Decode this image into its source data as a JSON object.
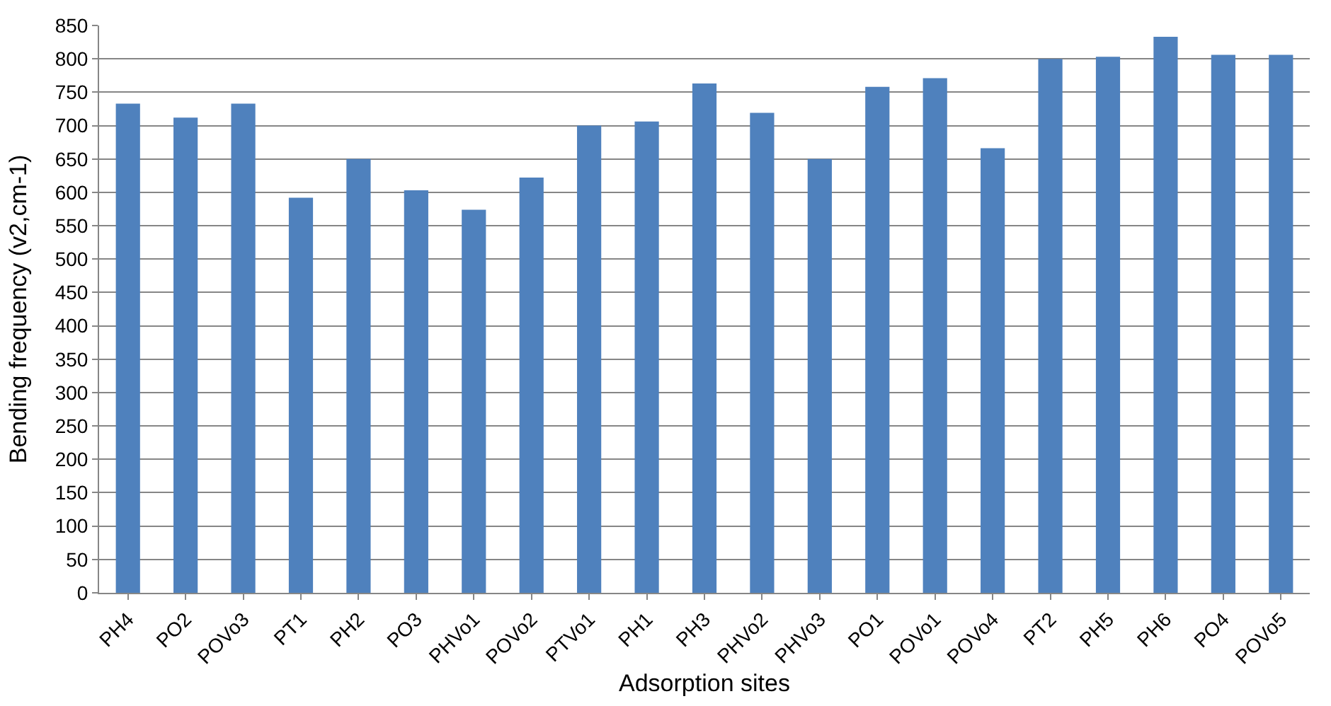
{
  "chart_data": {
    "type": "bar",
    "xlabel": "Adsorption sites",
    "ylabel": "Bending frequency (v2,cm-1)",
    "categories": [
      "PH4",
      "PO2",
      "POVo3",
      "PT1",
      "PH2",
      "PO3",
      "PHVo1",
      "POVo2",
      "PTVo1",
      "PH1",
      "PH3",
      "PHVo2",
      "PHVo3",
      "PO1",
      "POVo1",
      "POVo4",
      "PT2",
      "PH5",
      "PH6",
      "PO4",
      "POVo5"
    ],
    "values": [
      733,
      712,
      733,
      592,
      650,
      603,
      574,
      622,
      700,
      706,
      763,
      719,
      650,
      758,
      771,
      666,
      800,
      803,
      833,
      806,
      806
    ],
    "color": "#4f81bd",
    "ylim": [
      0,
      850
    ],
    "yticks": [
      0,
      50,
      100,
      150,
      200,
      250,
      300,
      350,
      400,
      450,
      500,
      550,
      600,
      650,
      700,
      750,
      800,
      850
    ],
    "grid": "y"
  }
}
